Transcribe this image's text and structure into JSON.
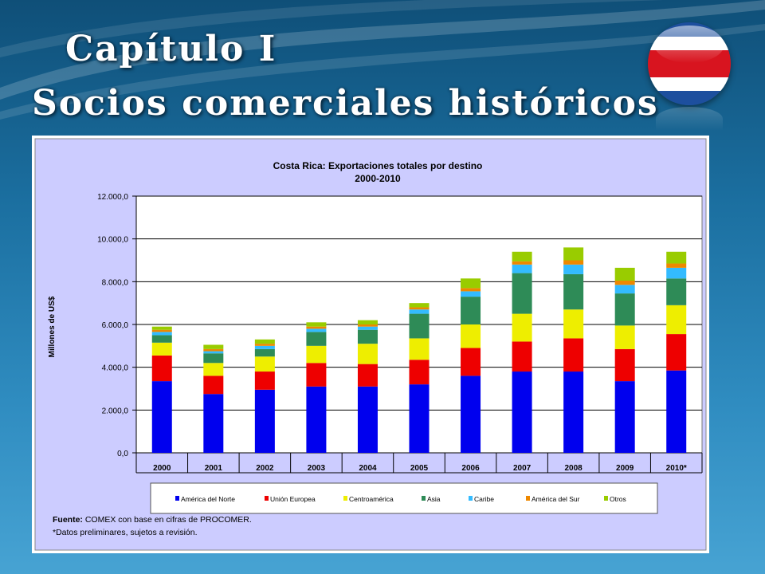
{
  "slide": {
    "title_line1": "Capítulo I",
    "title_line2": "Socios comerciales históricos"
  },
  "colors": {
    "background": "#2f8cc0",
    "chart_area": "#ccccff",
    "flag_blue": "#1d4f9e",
    "flag_white": "#ffffff",
    "flag_red": "#d8141f"
  },
  "icons": {
    "flag": "costa-rica-flag-icon"
  },
  "source": {
    "label": "Fuente:",
    "text": " COMEX con base en cifras de PROCOMER.",
    "note": "*Datos preliminares, sujetos a revisión."
  },
  "chart_data": {
    "type": "bar",
    "stacked": true,
    "title": "Costa Rica: Exportaciones totales por destino",
    "subtitle": "2000-2010",
    "ylabel": "Millones de US$",
    "xlabel": "",
    "ylim": [
      0,
      12000
    ],
    "yticks": [
      0,
      2000,
      4000,
      6000,
      8000,
      10000,
      12000
    ],
    "ytick_labels": [
      "0,0",
      "2.000,0",
      "4.000,0",
      "6.000,0",
      "8.000,0",
      "10.000,0",
      "12.000,0"
    ],
    "grid": true,
    "legend_position": "bottom",
    "categories": [
      "2000",
      "2001",
      "2002",
      "2003",
      "2004",
      "2005",
      "2006",
      "2007",
      "2008",
      "2009",
      "2010*"
    ],
    "series": [
      {
        "name": "América del Norte",
        "color": "#0000ee",
        "values": [
          3350,
          2750,
          2950,
          3100,
          3100,
          3200,
          3600,
          3800,
          3800,
          3350,
          3850
        ]
      },
      {
        "name": "Unión Europea",
        "color": "#ee0000",
        "values": [
          1200,
          850,
          850,
          1100,
          1050,
          1150,
          1300,
          1400,
          1550,
          1500,
          1700
        ]
      },
      {
        "name": "Centroamérica",
        "color": "#eeee00",
        "values": [
          600,
          600,
          700,
          800,
          950,
          1000,
          1100,
          1300,
          1350,
          1100,
          1350
        ]
      },
      {
        "name": "Asia",
        "color": "#2e8b57",
        "values": [
          350,
          450,
          350,
          650,
          650,
          1150,
          1300,
          1900,
          1650,
          1500,
          1250
        ]
      },
      {
        "name": "Caribe",
        "color": "#33bbff",
        "values": [
          150,
          100,
          150,
          150,
          150,
          200,
          250,
          400,
          450,
          400,
          500
        ]
      },
      {
        "name": "América del Sur",
        "color": "#ee8800",
        "values": [
          100,
          100,
          100,
          100,
          100,
          100,
          150,
          150,
          200,
          200,
          200
        ]
      },
      {
        "name": "Otros",
        "color": "#99cc00",
        "values": [
          150,
          200,
          200,
          200,
          200,
          200,
          450,
          450,
          600,
          600,
          550
        ]
      }
    ]
  }
}
